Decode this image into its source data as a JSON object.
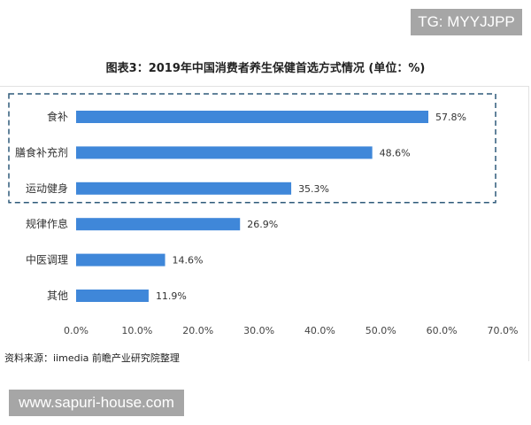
{
  "watermark_top": "TG: MYYJJPP",
  "watermark_bottom": "www.sapuri-house.com",
  "source": "资料来源：iimedia 前瞻产业研究院整理",
  "chart_data": {
    "type": "bar",
    "orientation": "horizontal",
    "title": "图表3：2019年中国消费者养生保健首选方式情况 (单位：%)",
    "categories": [
      "食补",
      "膳食补充剂",
      "运动健身",
      "规律作息",
      "中医调理",
      "其他"
    ],
    "values": [
      57.8,
      48.6,
      35.3,
      26.9,
      14.6,
      11.9
    ],
    "data_labels": [
      "57.8%",
      "48.6%",
      "35.3%",
      "26.9%",
      "14.6%",
      "11.9%"
    ],
    "x_ticks": [
      "0.0%",
      "10.0%",
      "20.0%",
      "30.0%",
      "40.0%",
      "50.0%",
      "60.0%",
      "70.0%"
    ],
    "xlim": [
      0,
      70
    ],
    "grid": false,
    "bar_color": "#3f87d9",
    "highlight": {
      "categories": [
        "食补",
        "膳食补充剂",
        "运动健身"
      ],
      "style": "dashed box",
      "color": "#2e5a7a"
    }
  }
}
